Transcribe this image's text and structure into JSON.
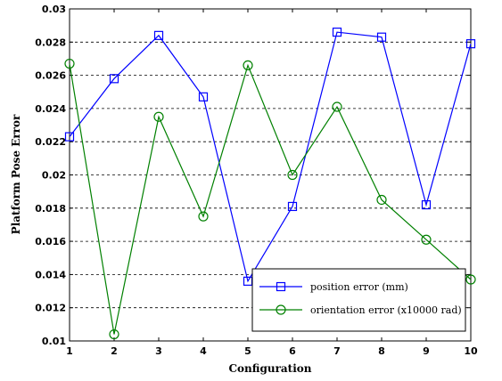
{
  "chart_data": {
    "type": "line",
    "title": "",
    "xlabel": "Configuration",
    "ylabel": "Platform Pose Error",
    "x": [
      1,
      2,
      3,
      4,
      5,
      6,
      7,
      8,
      9,
      10
    ],
    "xlim": [
      1,
      10
    ],
    "ylim": [
      0.01,
      0.03
    ],
    "xticks": [
      "1",
      "2",
      "3",
      "4",
      "5",
      "6",
      "7",
      "8",
      "9",
      "10"
    ],
    "yticks": [
      {
        "value": 0.01,
        "label": "0.01"
      },
      {
        "value": 0.012,
        "label": "0.012"
      },
      {
        "value": 0.014,
        "label": "0.014"
      },
      {
        "value": 0.016,
        "label": "0.016"
      },
      {
        "value": 0.018,
        "label": "0.018"
      },
      {
        "value": 0.02,
        "label": "0.02"
      },
      {
        "value": 0.022,
        "label": "0.022"
      },
      {
        "value": 0.024,
        "label": "0.024"
      },
      {
        "value": 0.026,
        "label": "0.026"
      },
      {
        "value": 0.028,
        "label": "0.028"
      },
      {
        "value": 0.03,
        "label": "0.03"
      }
    ],
    "grid": "horizontal",
    "legend_position": "bottom-right",
    "series": [
      {
        "name": "position error (mm)",
        "color": "#0000ff",
        "marker": "square",
        "values": [
          0.0223,
          0.0258,
          0.0284,
          0.0247,
          0.0136,
          0.0181,
          0.0286,
          0.0283,
          0.0182,
          0.0279
        ]
      },
      {
        "name": "orientation error (x10000 rad)",
        "color": "#008000",
        "marker": "circle",
        "values": [
          0.0267,
          0.0104,
          0.0235,
          0.0175,
          0.0266,
          0.02,
          0.0241,
          0.0185,
          0.0161,
          0.0137
        ]
      }
    ]
  }
}
